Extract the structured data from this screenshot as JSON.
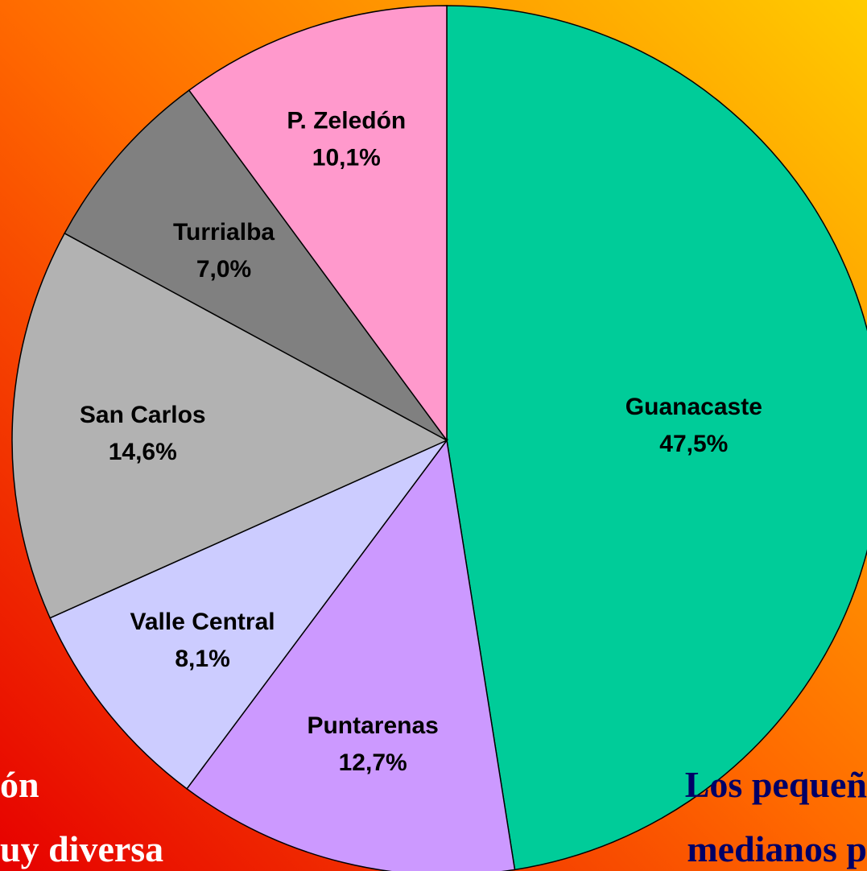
{
  "chart_data": {
    "type": "pie",
    "categories": [
      "Guanacaste",
      "Puntarenas",
      "Valle Central",
      "San Carlos",
      "Turrialba",
      "P. Zeledón"
    ],
    "values": [
      47.5,
      12.7,
      8.1,
      14.6,
      7.0,
      10.1
    ],
    "value_labels": [
      "47,5%",
      "12,7%",
      "8,1%",
      "14,6%",
      "7,0%",
      "10,1%"
    ],
    "colors": [
      "#00cc99",
      "#cc99ff",
      "#ccccff",
      "#b2b2b2",
      "#808080",
      "#ff99cc"
    ],
    "annotations": {
      "left": [
        "ón",
        "uy diversa"
      ],
      "right": [
        "Los pequeñ",
        "medianos p"
      ]
    }
  }
}
